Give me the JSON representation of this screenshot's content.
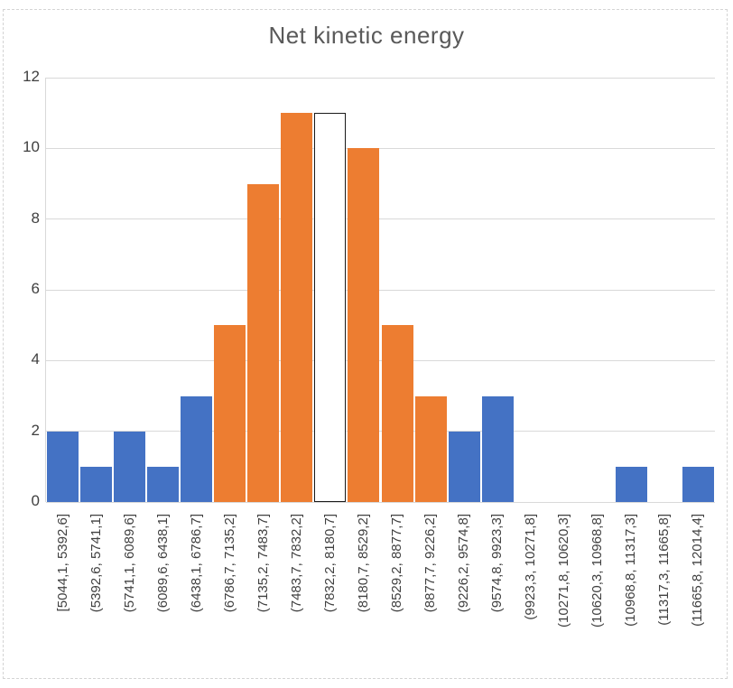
{
  "title": "Net kinetic energy",
  "colors": {
    "series_blue": "#4472C4",
    "series_orange": "#ED7D31",
    "highlight_fill": "#FFFFFF",
    "highlight_border": "#1a1a1a",
    "gridline": "#d9d9d9",
    "axis_label_text": "#404040",
    "title_text": "#595959",
    "frame_border": "#d4d4d4"
  },
  "chart_data": {
    "type": "bar",
    "title": "Net kinetic energy",
    "categories": [
      "[5044,1, 5392,6]",
      "(5392,6, 5741,1]",
      "(5741,1, 6089,6]",
      "(6089,6, 6438,1]",
      "(6438,1, 6786,7]",
      "(6786,7, 7135,2]",
      "(7135,2, 7483,7]",
      "(7483,7, 7832,2]",
      "(7832,2, 8180,7]",
      "(8180,7, 8529,2]",
      "(8529,2, 8877,7]",
      "(8877,7, 9226,2]",
      "(9226,2, 9574,8]",
      "(9574,8, 9923,3]",
      "(9923,3, 10271,8]",
      "(10271,8, 10620,3]",
      "(10620,3, 10968,8]",
      "(10968,8, 11317,3]",
      "(11317,3, 11665,8]",
      "(11665,8, 12014,4]"
    ],
    "values": [
      2,
      1,
      2,
      1,
      3,
      5,
      9,
      11,
      11,
      10,
      5,
      3,
      2,
      3,
      0,
      0,
      0,
      1,
      0,
      1
    ],
    "bar_colors": [
      "blue",
      "blue",
      "blue",
      "blue",
      "blue",
      "orange",
      "orange",
      "orange",
      "highlight",
      "orange",
      "orange",
      "orange",
      "blue",
      "blue",
      "none",
      "none",
      "none",
      "blue",
      "none",
      "blue"
    ],
    "xlabel": "",
    "ylabel": "",
    "ylim": [
      0,
      12
    ],
    "yticks": [
      0,
      2,
      4,
      6,
      8,
      10,
      12
    ],
    "grid": true,
    "legend": "none",
    "x_tick_rotation_deg": 90
  }
}
